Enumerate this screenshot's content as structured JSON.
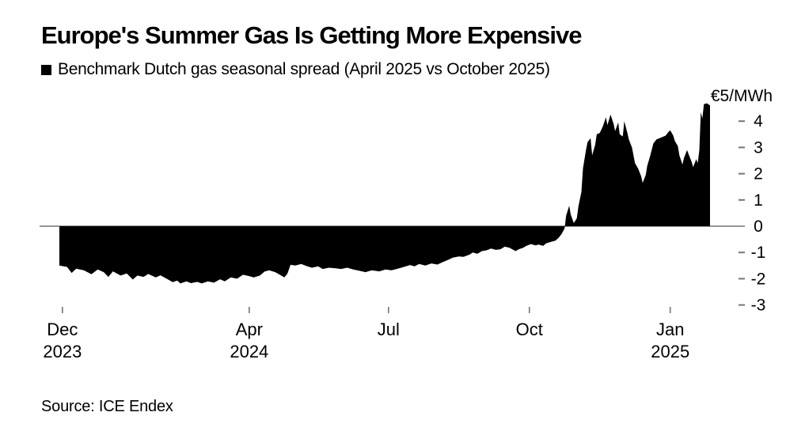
{
  "header": {
    "title": "Europe's Summer Gas Is Getting More Expensive",
    "legend_label": "Benchmark Dutch gas seasonal spread (April 2025 vs October 2025)"
  },
  "footer": {
    "source": "Source: ICE Endex"
  },
  "colors": {
    "fill": "#000000",
    "axis_line": "#757575",
    "tick_mark": "#757575",
    "label_text": "#000000",
    "background": "#ffffff"
  },
  "chart_data": {
    "type": "area",
    "title": "Europe's Summer Gas Is Getting More Expensive",
    "series_name": "Benchmark Dutch gas seasonal spread (April 2025 vs October 2025)",
    "unit": "EUR/MWh",
    "baseline": 0,
    "grid": false,
    "legend_position": "top-left",
    "fill_color": "#000000",
    "y_axis": {
      "side": "right",
      "unit_label": "€5/MWh",
      "unit_label_value": 5,
      "ticks": [
        4,
        3,
        2,
        1,
        0,
        -1,
        -2,
        -3
      ],
      "ylim": [
        -3,
        5
      ]
    },
    "x_axis": {
      "xlim": [
        "2023-11-29",
        "2025-01-27"
      ],
      "ticks": [
        {
          "date": "2023-12-01",
          "label": "Dec",
          "sublabel": "2023"
        },
        {
          "date": "2024-04-01",
          "label": "Apr",
          "sublabel": "2024"
        },
        {
          "date": "2024-07-01",
          "label": "Jul",
          "sublabel": ""
        },
        {
          "date": "2024-10-01",
          "label": "Oct",
          "sublabel": ""
        },
        {
          "date": "2025-01-01",
          "label": "Jan",
          "sublabel": "2025"
        }
      ]
    },
    "points": [
      [
        "2023-11-29",
        -1.5
      ],
      [
        "2023-12-04",
        -1.55
      ],
      [
        "2023-12-07",
        -1.78
      ],
      [
        "2023-12-10",
        -1.62
      ],
      [
        "2023-12-15",
        -1.68
      ],
      [
        "2023-12-20",
        -1.83
      ],
      [
        "2023-12-24",
        -1.65
      ],
      [
        "2023-12-28",
        -1.75
      ],
      [
        "2023-12-31",
        -1.93
      ],
      [
        "2024-01-03",
        -1.72
      ],
      [
        "2024-01-08",
        -1.88
      ],
      [
        "2024-01-12",
        -1.8
      ],
      [
        "2024-01-16",
        -2.03
      ],
      [
        "2024-01-19",
        -1.88
      ],
      [
        "2024-01-23",
        -1.93
      ],
      [
        "2024-01-26",
        -1.82
      ],
      [
        "2024-01-31",
        -1.95
      ],
      [
        "2024-02-03",
        -1.87
      ],
      [
        "2024-02-08",
        -2.03
      ],
      [
        "2024-02-11",
        -2.13
      ],
      [
        "2024-02-14",
        -2.07
      ],
      [
        "2024-02-16",
        -2.18
      ],
      [
        "2024-02-20",
        -2.1
      ],
      [
        "2024-02-23",
        -2.17
      ],
      [
        "2024-02-27",
        -2.12
      ],
      [
        "2024-03-01",
        -2.18
      ],
      [
        "2024-03-05",
        -2.1
      ],
      [
        "2024-03-09",
        -2.15
      ],
      [
        "2024-03-13",
        -2.02
      ],
      [
        "2024-03-16",
        -2.1
      ],
      [
        "2024-03-20",
        -1.95
      ],
      [
        "2024-03-24",
        -2.0
      ],
      [
        "2024-03-28",
        -1.85
      ],
      [
        "2024-04-01",
        -1.9
      ],
      [
        "2024-04-04",
        -1.95
      ],
      [
        "2024-04-08",
        -1.88
      ],
      [
        "2024-04-11",
        -1.73
      ],
      [
        "2024-04-14",
        -1.68
      ],
      [
        "2024-04-18",
        -1.75
      ],
      [
        "2024-04-21",
        -1.85
      ],
      [
        "2024-04-24",
        -1.95
      ],
      [
        "2024-04-26",
        -1.8
      ],
      [
        "2024-04-28",
        -1.47
      ],
      [
        "2024-05-01",
        -1.5
      ],
      [
        "2024-05-05",
        -1.44
      ],
      [
        "2024-05-09",
        -1.53
      ],
      [
        "2024-05-12",
        -1.58
      ],
      [
        "2024-05-16",
        -1.53
      ],
      [
        "2024-05-19",
        -1.63
      ],
      [
        "2024-05-23",
        -1.58
      ],
      [
        "2024-05-27",
        -1.6
      ],
      [
        "2024-05-31",
        -1.63
      ],
      [
        "2024-06-04",
        -1.58
      ],
      [
        "2024-06-08",
        -1.65
      ],
      [
        "2024-06-12",
        -1.7
      ],
      [
        "2024-06-16",
        -1.75
      ],
      [
        "2024-06-20",
        -1.68
      ],
      [
        "2024-06-25",
        -1.72
      ],
      [
        "2024-06-29",
        -1.65
      ],
      [
        "2024-07-03",
        -1.68
      ],
      [
        "2024-07-07",
        -1.62
      ],
      [
        "2024-07-11",
        -1.55
      ],
      [
        "2024-07-15",
        -1.48
      ],
      [
        "2024-07-18",
        -1.53
      ],
      [
        "2024-07-21",
        -1.44
      ],
      [
        "2024-07-25",
        -1.5
      ],
      [
        "2024-07-29",
        -1.42
      ],
      [
        "2024-08-02",
        -1.46
      ],
      [
        "2024-08-05",
        -1.38
      ],
      [
        "2024-08-09",
        -1.28
      ],
      [
        "2024-08-12",
        -1.2
      ],
      [
        "2024-08-16",
        -1.15
      ],
      [
        "2024-08-19",
        -1.17
      ],
      [
        "2024-08-23",
        -1.08
      ],
      [
        "2024-08-25",
        -1.0
      ],
      [
        "2024-08-28",
        -1.05
      ],
      [
        "2024-08-31",
        -0.95
      ],
      [
        "2024-09-03",
        -0.92
      ],
      [
        "2024-09-06",
        -0.85
      ],
      [
        "2024-09-09",
        -0.9
      ],
      [
        "2024-09-12",
        -0.88
      ],
      [
        "2024-09-15",
        -0.78
      ],
      [
        "2024-09-18",
        -0.82
      ],
      [
        "2024-09-22",
        -0.95
      ],
      [
        "2024-09-24",
        -0.88
      ],
      [
        "2024-09-27",
        -0.82
      ],
      [
        "2024-09-29",
        -0.75
      ],
      [
        "2024-10-02",
        -0.68
      ],
      [
        "2024-10-05",
        -0.73
      ],
      [
        "2024-10-07",
        -0.7
      ],
      [
        "2024-10-10",
        -0.75
      ],
      [
        "2024-10-12",
        -0.65
      ],
      [
        "2024-10-15",
        -0.6
      ],
      [
        "2024-10-18",
        -0.55
      ],
      [
        "2024-10-20",
        -0.45
      ],
      [
        "2024-10-22",
        -0.3
      ],
      [
        "2024-10-24",
        -0.08
      ],
      [
        "2024-10-25",
        0.4
      ],
      [
        "2024-10-27",
        0.78
      ],
      [
        "2024-10-28",
        0.45
      ],
      [
        "2024-10-30",
        0.12
      ],
      [
        "2024-11-01",
        0.3
      ],
      [
        "2024-11-02",
        0.75
      ],
      [
        "2024-11-04",
        1.3
      ],
      [
        "2024-11-05",
        2.2
      ],
      [
        "2024-11-07",
        2.9
      ],
      [
        "2024-11-08",
        3.2
      ],
      [
        "2024-11-10",
        3.35
      ],
      [
        "2024-11-11",
        2.7
      ],
      [
        "2024-11-13",
        3.1
      ],
      [
        "2024-11-14",
        3.5
      ],
      [
        "2024-11-16",
        3.55
      ],
      [
        "2024-11-18",
        3.8
      ],
      [
        "2024-11-20",
        4.15
      ],
      [
        "2024-11-21",
        3.85
      ],
      [
        "2024-11-23",
        4.25
      ],
      [
        "2024-11-25",
        3.9
      ],
      [
        "2024-11-26",
        3.62
      ],
      [
        "2024-11-28",
        3.95
      ],
      [
        "2024-11-29",
        3.5
      ],
      [
        "2024-12-01",
        3.42
      ],
      [
        "2024-12-02",
        4.0
      ],
      [
        "2024-12-04",
        3.55
      ],
      [
        "2024-12-05",
        3.3
      ],
      [
        "2024-12-07",
        3.0
      ],
      [
        "2024-12-09",
        2.4
      ],
      [
        "2024-12-11",
        2.2
      ],
      [
        "2024-12-13",
        1.9
      ],
      [
        "2024-12-14",
        1.65
      ],
      [
        "2024-12-16",
        1.95
      ],
      [
        "2024-12-17",
        2.3
      ],
      [
        "2024-12-19",
        2.7
      ],
      [
        "2024-12-21",
        3.15
      ],
      [
        "2024-12-23",
        3.3
      ],
      [
        "2024-12-25",
        3.35
      ],
      [
        "2024-12-27",
        3.4
      ],
      [
        "2024-12-29",
        3.45
      ],
      [
        "2024-12-31",
        3.6
      ],
      [
        "2025-01-01",
        3.65
      ],
      [
        "2025-01-03",
        3.45
      ],
      [
        "2025-01-04",
        3.25
      ],
      [
        "2025-01-06",
        3.05
      ],
      [
        "2025-01-07",
        2.7
      ],
      [
        "2025-01-09",
        2.35
      ],
      [
        "2025-01-10",
        2.6
      ],
      [
        "2025-01-12",
        2.9
      ],
      [
        "2025-01-13",
        2.75
      ],
      [
        "2025-01-15",
        2.45
      ],
      [
        "2025-01-16",
        2.25
      ],
      [
        "2025-01-18",
        2.55
      ],
      [
        "2025-01-19",
        2.4
      ],
      [
        "2025-01-20",
        2.9
      ],
      [
        "2025-01-21",
        4.35
      ],
      [
        "2025-01-22",
        4.1
      ],
      [
        "2025-01-23",
        4.65
      ],
      [
        "2025-01-25",
        4.68
      ],
      [
        "2025-01-27",
        4.6
      ]
    ]
  }
}
